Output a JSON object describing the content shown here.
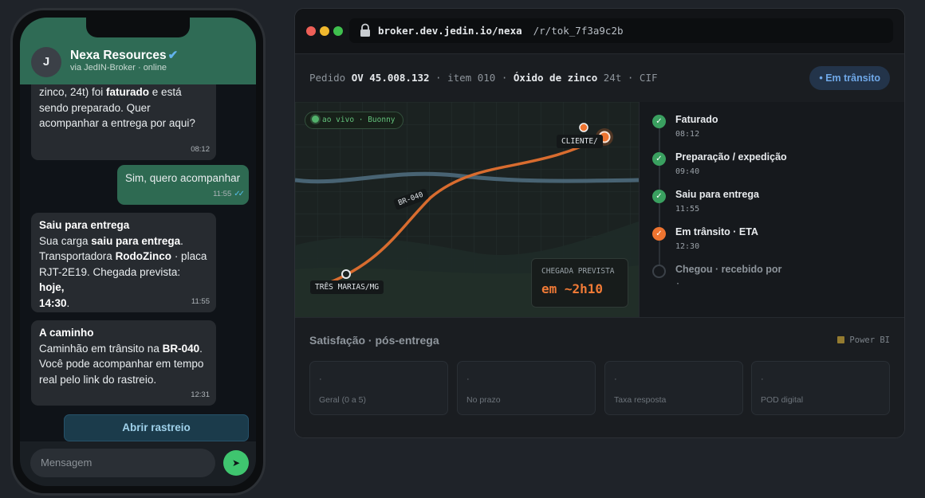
{
  "phone": {
    "contact_initial": "J",
    "contact_name": "Nexa Resources",
    "verified_mark": "✔",
    "contact_sub": "via JedIN-Broker · online",
    "messages": [
      {
        "lines": [
          "zinco, 24t) foi ",
          "faturado",
          " e está",
          "sendo preparado. Quer",
          "acompanhar a entrega por aqui?"
        ],
        "time": "08:12"
      },
      {
        "text": "Sim, quero acompanhar",
        "time": "11:55",
        "ticks": "✓✓"
      },
      {
        "title": "Saiu para entrega",
        "p1": "Sua carga ",
        "p1b": "saiu para entrega",
        "p2": ".",
        "p3": "Transportadora ",
        "p3b": "RodoZinco",
        "p4": " · placa",
        "p5": "RJT-2E19. Chegada prevista: ",
        "p5b": "hoje,",
        "p6b": "14:30",
        "p7": ".",
        "time": "11:55"
      },
      {
        "title": "A caminho",
        "p1": "Caminhão em trânsito na ",
        "p1b": "BR-040",
        "p2": ".",
        "p3": "Você pode acompanhar em tempo",
        "p4": "real pelo link do rastreio.",
        "time": "12:31"
      }
    ],
    "open_tracking_label": "Abrir rastreio",
    "composer_placeholder": "Mensagem",
    "send_icon": "➤"
  },
  "browser": {
    "url_domain": "broker.dev.jedin.io/nexa",
    "url_path": "/r/tok_7f3a9c2b",
    "order": {
      "prefix": "Pedido ",
      "number": "OV 45.008.132",
      "item": " · item 010 · ",
      "product": "Óxido de zinco",
      "rest": " 24t · CIF"
    },
    "status_pill": "• Em trânsito",
    "map": {
      "live_label": "ao vivo · Buonny",
      "origin_label": "TRÊS MARIAS/MG",
      "dest_label": "CLIENTE/",
      "route_label": "BR-040",
      "eta_label": "CHEGADA PREVISTA",
      "eta_value": "em ~2h10",
      "route_progress": 0.8
    },
    "timeline": [
      {
        "title": "Faturado",
        "time": "08:12",
        "state": "done",
        "icon": "✓"
      },
      {
        "title": "Preparação / expedição",
        "time": "09:40",
        "state": "done",
        "icon": "✓"
      },
      {
        "title": "Saiu para entrega",
        "time": "11:55",
        "state": "done",
        "icon": "✓"
      },
      {
        "title": "Em trânsito · ETA",
        "time": "12:30",
        "state": "current",
        "icon": "✓"
      },
      {
        "title": "Chegou · recebido por",
        "time": "·",
        "state": "pending",
        "icon": ""
      }
    ],
    "satisfaction": {
      "title": "Satisfação · pós-entrega",
      "powerbi": "Power BI",
      "kpis": [
        {
          "value": "·",
          "label": "Geral (0 a 5)"
        },
        {
          "value": "·",
          "label": "No prazo"
        },
        {
          "value": "·",
          "label": "Taxa resposta"
        },
        {
          "value": "·",
          "label": "POD digital"
        }
      ]
    }
  },
  "colors": {
    "accent_orange": "#ee7430",
    "chat_green": "#2f6b55",
    "done_green": "#3aa060",
    "status_blue": "#6fa8e8"
  }
}
